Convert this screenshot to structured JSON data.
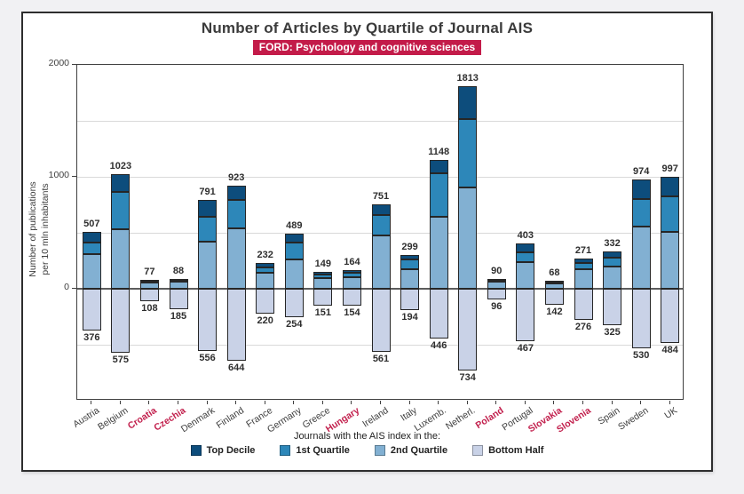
{
  "page": {
    "title": "Number of Articles by Quartile of Journal AIS",
    "subtitle": "FORD: Psychology and cognitive sciences",
    "subtitle_bg": "#c31b49"
  },
  "axes": {
    "y_label_line1": "Number of publications",
    "y_label_line2": "per 10 mln inhabitants",
    "y_ticks": [
      {
        "label": "2000",
        "value": 2000
      },
      {
        "label": "1000",
        "value": 1000
      },
      {
        "label": "0",
        "value": 0
      }
    ]
  },
  "legend": {
    "title": "Journals with the AIS index in the:",
    "items": [
      {
        "label": "Top Decile",
        "color": "#0d4d7c"
      },
      {
        "label": "1st Quartile",
        "color": "#2d87b9"
      },
      {
        "label": "2nd Quartile",
        "color": "#82b0d2"
      },
      {
        "label": "Bottom Half",
        "color": "#c9d2e7"
      }
    ]
  },
  "chart_data": {
    "type": "bar",
    "stacked": true,
    "title": "Number of Articles by Quartile of Journal AIS",
    "subtitle": "FORD: Psychology and cognitive sciences",
    "xlabel": "",
    "ylabel": "Number of publications per 10 mln inhabitants",
    "ylim": [
      -1000,
      2000
    ],
    "gridlines": [
      1500,
      1000,
      500,
      0,
      -500
    ],
    "grid": true,
    "legend_position": "bottom",
    "categories": [
      "Austria",
      "Belgium",
      "Croatia",
      "Czechia",
      "Denmark",
      "Finland",
      "France",
      "Germany",
      "Greece",
      "Hungary",
      "Ireland",
      "Italy",
      "Luxemb.",
      "Netherl.",
      "Poland",
      "Portugal",
      "Slovakia",
      "Slovenia",
      "Spain",
      "Sweden",
      "UK"
    ],
    "highlighted_categories": [
      "Croatia",
      "Czechia",
      "Hungary",
      "Poland",
      "Slovakia",
      "Slovenia"
    ],
    "totals_above_zero": [
      507,
      1023,
      77,
      88,
      791,
      923,
      232,
      489,
      149,
      164,
      751,
      299,
      1148,
      1813,
      90,
      403,
      68,
      271,
      332,
      974,
      997
    ],
    "totals_below_zero": [
      376,
      575,
      108,
      185,
      556,
      644,
      220,
      254,
      151,
      154,
      561,
      194,
      446,
      734,
      96,
      467,
      142,
      276,
      325,
      530,
      484
    ],
    "series": [
      {
        "name": "Top Decile",
        "direction": "up",
        "color": "#0d4d7c",
        "values": [
          92,
          160,
          8,
          10,
          145,
          132,
          38,
          80,
          20,
          22,
          92,
          40,
          120,
          300,
          12,
          80,
          8,
          40,
          52,
          171,
          168
        ]
      },
      {
        "name": "1st Quartile",
        "direction": "up",
        "color": "#2d87b9",
        "values": [
          108,
          330,
          12,
          14,
          225,
          255,
          55,
          147,
          35,
          38,
          185,
          82,
          385,
          612,
          16,
          82,
          14,
          55,
          80,
          250,
          320
        ]
      },
      {
        "name": "2nd Quartile",
        "direction": "up",
        "color": "#82b0d2",
        "values": [
          307,
          533,
          57,
          64,
          421,
          536,
          139,
          262,
          94,
          104,
          474,
          177,
          643,
          901,
          62,
          241,
          46,
          176,
          200,
          553,
          509
        ]
      },
      {
        "name": "Bottom Half",
        "direction": "down",
        "color": "#c9d2e7",
        "values": [
          376,
          575,
          108,
          185,
          556,
          644,
          220,
          254,
          151,
          154,
          561,
          194,
          446,
          734,
          96,
          467,
          142,
          276,
          325,
          530,
          484
        ]
      }
    ]
  }
}
